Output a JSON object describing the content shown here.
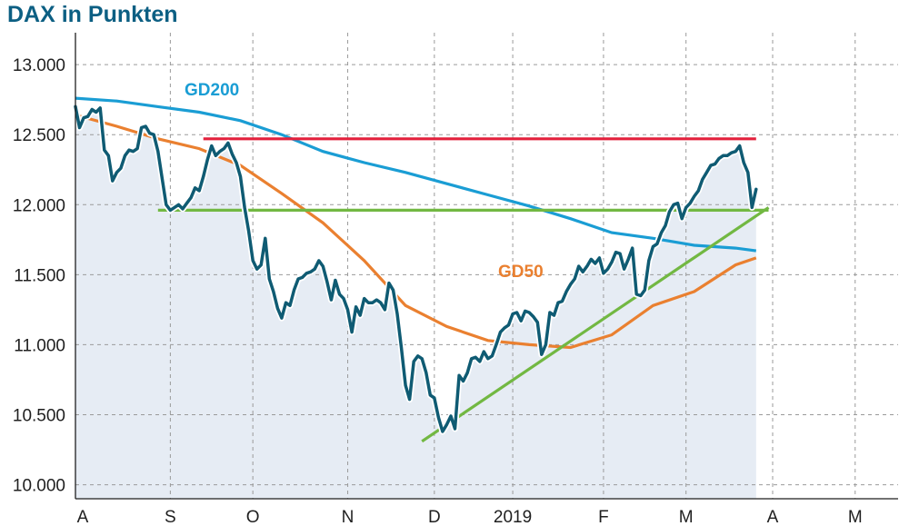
{
  "chart_title": "DAX in Punkten",
  "chart_data": {
    "type": "line",
    "title": "DAX in Punkten",
    "xlabel": "",
    "ylabel": "",
    "ylim": [
      9900,
      13150
    ],
    "y_ticks": [
      {
        "value": 10000,
        "label": "10.000"
      },
      {
        "value": 10500,
        "label": "10.500"
      },
      {
        "value": 11000,
        "label": "11.000"
      },
      {
        "value": 11500,
        "label": "11.500"
      },
      {
        "value": 12000,
        "label": "12.000"
      },
      {
        "value": 12500,
        "label": "12.500"
      },
      {
        "value": 13000,
        "label": "13.000"
      }
    ],
    "x_range": [
      0,
      195
    ],
    "x_ticks": [
      {
        "value": 0,
        "label": "A"
      },
      {
        "value": 23,
        "label": "S"
      },
      {
        "value": 43,
        "label": "O"
      },
      {
        "value": 66,
        "label": "N"
      },
      {
        "value": 87,
        "label": "D"
      },
      {
        "value": 106,
        "label": "2019"
      },
      {
        "value": 128,
        "label": "F"
      },
      {
        "value": 148,
        "label": "M"
      },
      {
        "value": 169,
        "label": "A"
      },
      {
        "value": 189,
        "label": "M"
      }
    ],
    "grid": true,
    "series": [
      {
        "name": "",
        "color": "#0f5b73",
        "points": [
          [
            0,
            12700
          ],
          [
            1,
            12550
          ],
          [
            2,
            12620
          ],
          [
            3,
            12630
          ],
          [
            4,
            12680
          ],
          [
            5,
            12660
          ],
          [
            6,
            12690
          ],
          [
            7,
            12390
          ],
          [
            8,
            12350
          ],
          [
            9,
            12170
          ],
          [
            10,
            12230
          ],
          [
            11,
            12260
          ],
          [
            12,
            12350
          ],
          [
            13,
            12390
          ],
          [
            14,
            12380
          ],
          [
            15,
            12400
          ],
          [
            16,
            12550
          ],
          [
            17,
            12560
          ],
          [
            18,
            12510
          ],
          [
            19,
            12500
          ],
          [
            20,
            12380
          ],
          [
            21,
            12190
          ],
          [
            22,
            12000
          ],
          [
            23,
            11960
          ],
          [
            24,
            11980
          ],
          [
            25,
            12000
          ],
          [
            26,
            11970
          ],
          [
            27,
            12010
          ],
          [
            28,
            12050
          ],
          [
            29,
            12120
          ],
          [
            30,
            12100
          ],
          [
            31,
            12200
          ],
          [
            32,
            12320
          ],
          [
            33,
            12420
          ],
          [
            34,
            12350
          ],
          [
            35,
            12380
          ],
          [
            36,
            12400
          ],
          [
            37,
            12440
          ],
          [
            38,
            12360
          ],
          [
            39,
            12300
          ],
          [
            40,
            12200
          ],
          [
            41,
            11980
          ],
          [
            42,
            11810
          ],
          [
            43,
            11600
          ],
          [
            44,
            11540
          ],
          [
            45,
            11570
          ],
          [
            46,
            11760
          ],
          [
            47,
            11470
          ],
          [
            48,
            11380
          ],
          [
            49,
            11260
          ],
          [
            50,
            11190
          ],
          [
            51,
            11300
          ],
          [
            52,
            11280
          ],
          [
            53,
            11390
          ],
          [
            54,
            11470
          ],
          [
            55,
            11480
          ],
          [
            56,
            11510
          ],
          [
            57,
            11520
          ],
          [
            58,
            11540
          ],
          [
            59,
            11600
          ],
          [
            60,
            11560
          ],
          [
            61,
            11450
          ],
          [
            62,
            11320
          ],
          [
            63,
            11460
          ],
          [
            64,
            11360
          ],
          [
            65,
            11330
          ],
          [
            66,
            11250
          ],
          [
            67,
            11090
          ],
          [
            68,
            11270
          ],
          [
            69,
            11210
          ],
          [
            70,
            11330
          ],
          [
            71,
            11300
          ],
          [
            72,
            11300
          ],
          [
            73,
            11320
          ],
          [
            74,
            11300
          ],
          [
            75,
            11250
          ],
          [
            76,
            11440
          ],
          [
            77,
            11390
          ],
          [
            78,
            11220
          ],
          [
            79,
            10980
          ],
          [
            80,
            10710
          ],
          [
            81,
            10610
          ],
          [
            82,
            10880
          ],
          [
            83,
            10920
          ],
          [
            84,
            10900
          ],
          [
            85,
            10800
          ],
          [
            86,
            10640
          ],
          [
            87,
            10620
          ],
          [
            88,
            10480
          ],
          [
            89,
            10380
          ],
          [
            90,
            10430
          ],
          [
            91,
            10490
          ],
          [
            92,
            10400
          ],
          [
            93,
            10780
          ],
          [
            94,
            10740
          ],
          [
            95,
            10800
          ],
          [
            96,
            10900
          ],
          [
            97,
            10910
          ],
          [
            98,
            10880
          ],
          [
            99,
            10950
          ],
          [
            100,
            10900
          ],
          [
            101,
            10920
          ],
          [
            102,
            11000
          ],
          [
            103,
            11090
          ],
          [
            104,
            11120
          ],
          [
            105,
            11140
          ],
          [
            106,
            11220
          ],
          [
            107,
            11230
          ],
          [
            108,
            11170
          ],
          [
            109,
            11240
          ],
          [
            110,
            11230
          ],
          [
            111,
            11200
          ],
          [
            112,
            11160
          ],
          [
            113,
            10930
          ],
          [
            114,
            11000
          ],
          [
            115,
            11230
          ],
          [
            116,
            11210
          ],
          [
            117,
            11300
          ],
          [
            118,
            11310
          ],
          [
            119,
            11380
          ],
          [
            120,
            11430
          ],
          [
            121,
            11470
          ],
          [
            122,
            11560
          ],
          [
            123,
            11520
          ],
          [
            124,
            11560
          ],
          [
            125,
            11610
          ],
          [
            126,
            11580
          ],
          [
            127,
            11620
          ],
          [
            128,
            11510
          ],
          [
            129,
            11540
          ],
          [
            130,
            11590
          ],
          [
            131,
            11660
          ],
          [
            132,
            11650
          ],
          [
            133,
            11540
          ],
          [
            134,
            11610
          ],
          [
            135,
            11690
          ],
          [
            136,
            11360
          ],
          [
            137,
            11350
          ],
          [
            138,
            11390
          ],
          [
            139,
            11600
          ],
          [
            140,
            11700
          ],
          [
            141,
            11720
          ],
          [
            142,
            11800
          ],
          [
            143,
            11850
          ],
          [
            144,
            11950
          ],
          [
            145,
            12000
          ],
          [
            146,
            12010
          ],
          [
            147,
            11900
          ],
          [
            148,
            11980
          ],
          [
            149,
            12010
          ],
          [
            150,
            12060
          ],
          [
            151,
            12100
          ],
          [
            152,
            12180
          ],
          [
            153,
            12230
          ],
          [
            154,
            12280
          ],
          [
            155,
            12290
          ],
          [
            156,
            12330
          ],
          [
            157,
            12350
          ],
          [
            158,
            12350
          ],
          [
            159,
            12370
          ],
          [
            160,
            12380
          ],
          [
            161,
            12420
          ],
          [
            162,
            12300
          ],
          [
            163,
            12230
          ],
          [
            164,
            11980
          ],
          [
            165,
            12110
          ]
        ]
      },
      {
        "name": "GD200",
        "color": "#1a9dd4",
        "points": [
          [
            0,
            12760
          ],
          [
            10,
            12740
          ],
          [
            20,
            12700
          ],
          [
            30,
            12660
          ],
          [
            40,
            12600
          ],
          [
            50,
            12500
          ],
          [
            60,
            12380
          ],
          [
            70,
            12300
          ],
          [
            80,
            12230
          ],
          [
            90,
            12150
          ],
          [
            100,
            12070
          ],
          [
            110,
            11990
          ],
          [
            120,
            11900
          ],
          [
            130,
            11800
          ],
          [
            140,
            11760
          ],
          [
            150,
            11710
          ],
          [
            160,
            11690
          ],
          [
            165,
            11670
          ]
        ]
      },
      {
        "name": "GD50",
        "color": "#ea8030",
        "points": [
          [
            0,
            12640
          ],
          [
            10,
            12560
          ],
          [
            20,
            12470
          ],
          [
            30,
            12400
          ],
          [
            40,
            12280
          ],
          [
            50,
            12080
          ],
          [
            60,
            11870
          ],
          [
            70,
            11600
          ],
          [
            80,
            11280
          ],
          [
            90,
            11130
          ],
          [
            100,
            11030
          ],
          [
            110,
            11000
          ],
          [
            120,
            10980
          ],
          [
            130,
            11070
          ],
          [
            140,
            11280
          ],
          [
            150,
            11380
          ],
          [
            160,
            11570
          ],
          [
            165,
            11620
          ]
        ]
      },
      {
        "name": "",
        "color": "#e3203c",
        "points": [
          [
            31,
            12470
          ],
          [
            165,
            12470
          ]
        ]
      },
      {
        "name": "",
        "color": "#72b842",
        "points": [
          [
            20,
            11960
          ],
          [
            168,
            11960
          ]
        ]
      },
      {
        "name": "",
        "color": "#72b842",
        "points": [
          [
            84,
            10310
          ],
          [
            168,
            11980
          ]
        ]
      }
    ],
    "series_labels": [
      {
        "text": "GD200",
        "color": "#1a9dd4"
      },
      {
        "text": "GD50",
        "color": "#ea8030"
      }
    ],
    "area_fill": "#e6ecf4"
  }
}
